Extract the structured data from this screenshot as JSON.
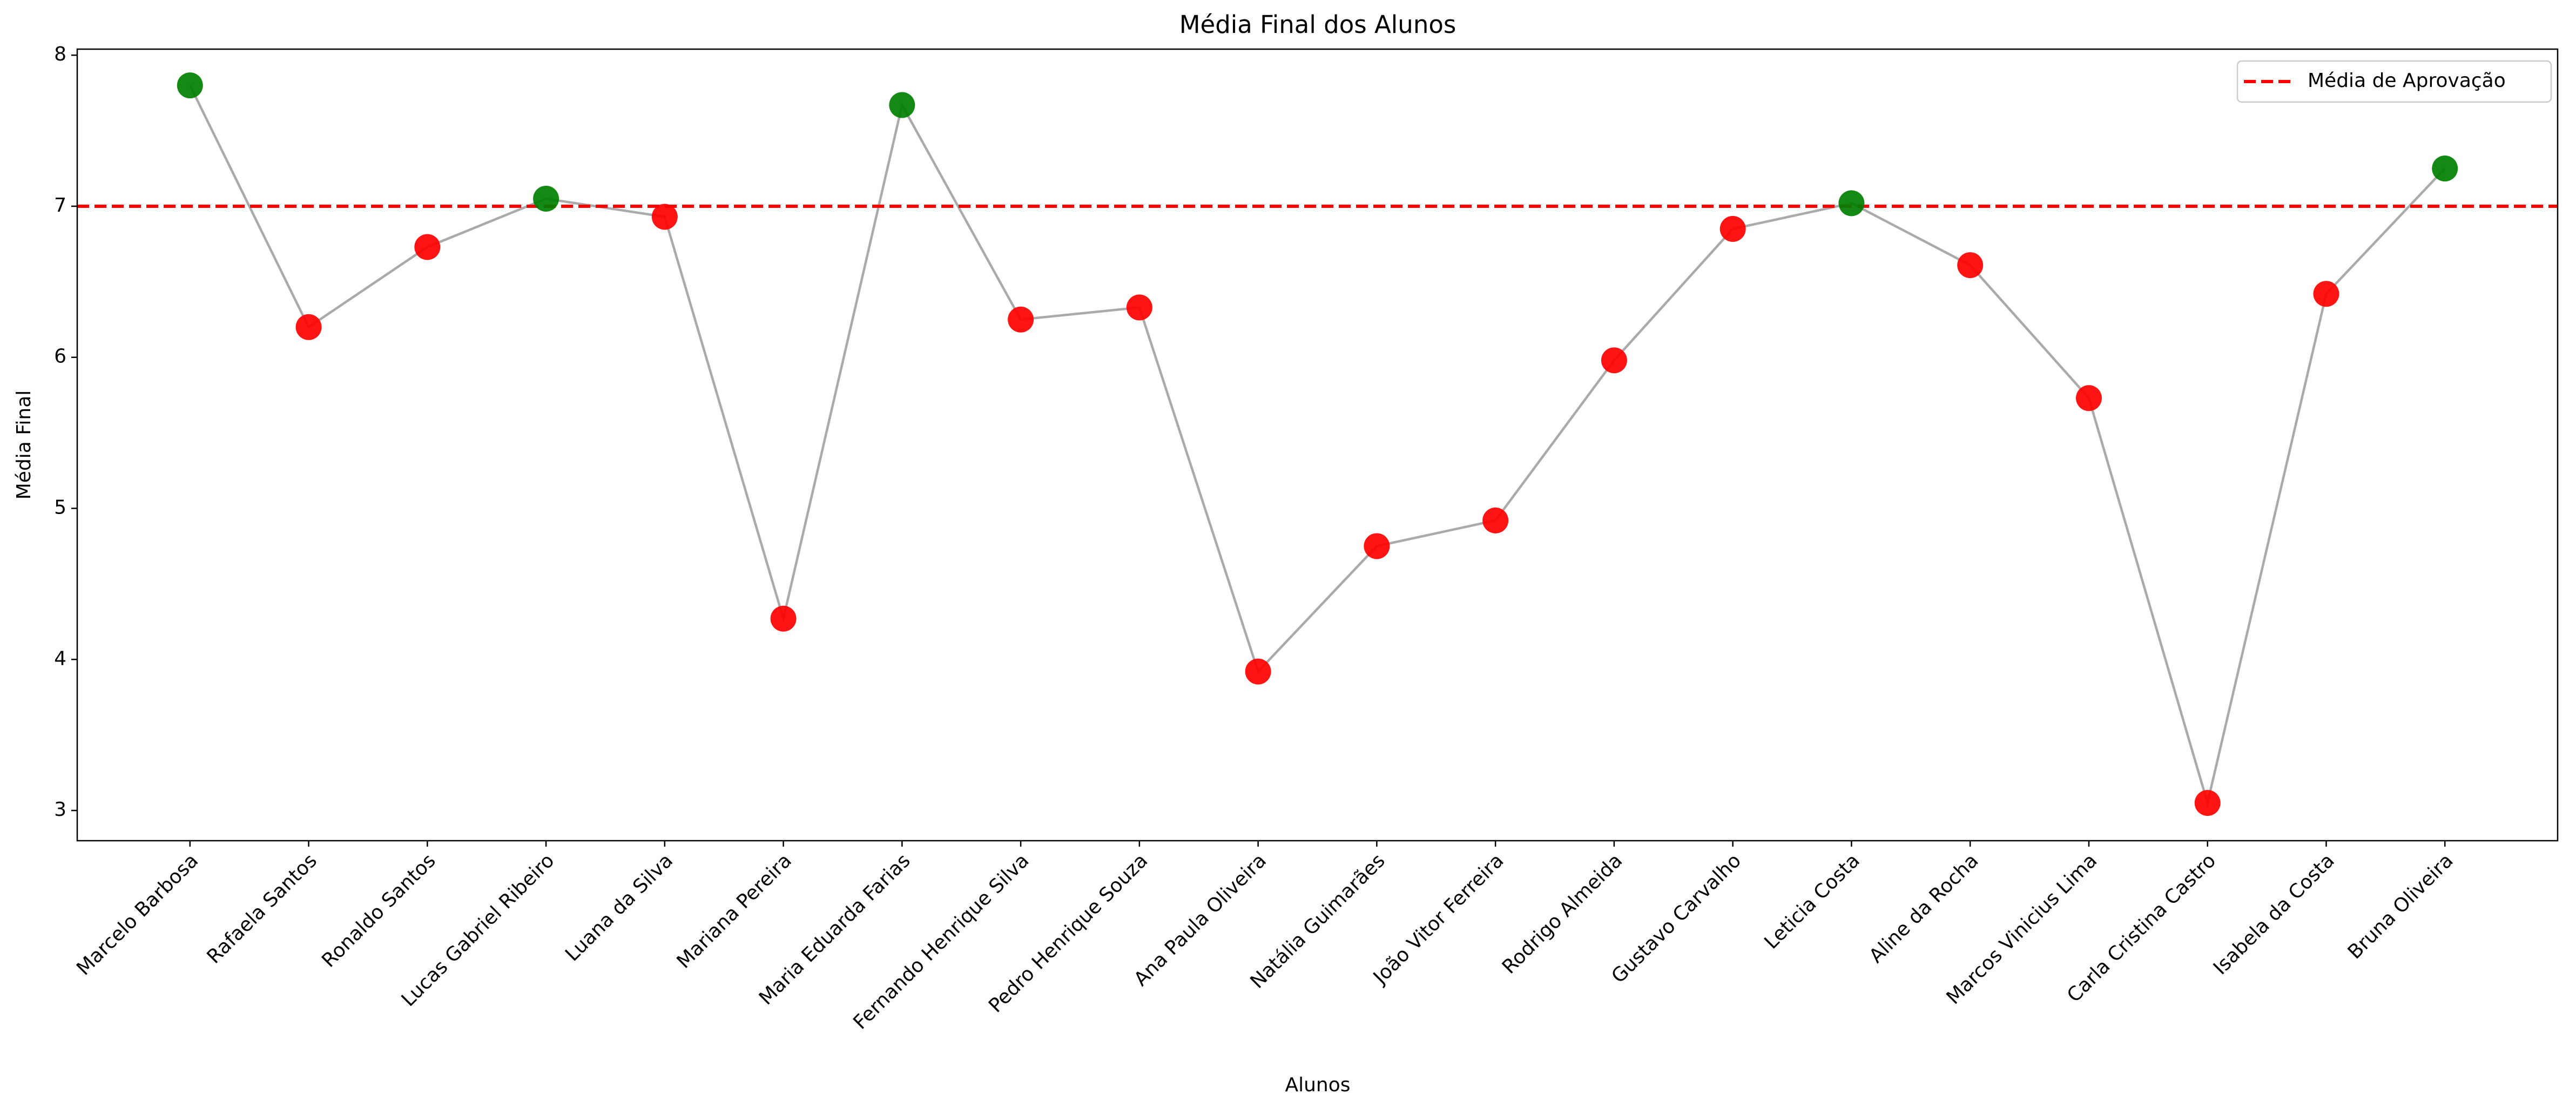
{
  "chart_data": {
    "type": "line",
    "title": "Média Final dos Alunos",
    "x_label": "Alunos",
    "y_label": "Média Final",
    "categories": [
      "Marcelo Barbosa",
      "Rafaela Santos",
      "Ronaldo Santos",
      "Lucas Gabriel Ribeiro",
      "Luana da Silva",
      "Mariana Pereira",
      "Maria Eduarda Farias",
      "Fernando Henrique Silva",
      "Pedro Henrique Souza",
      "Ana Paula Oliveira",
      "Natália Guimarães",
      "João Vitor Ferreira",
      "Rodrigo Almeida",
      "Gustavo Carvalho",
      "Leticia Costa",
      "Aline da Rocha",
      "Marcos Vinicius Lima",
      "Carla Cristina Castro",
      "Isabela da Costa",
      "Bruna Oliveira"
    ],
    "values": [
      7.8,
      6.2,
      6.73,
      7.05,
      6.93,
      4.27,
      7.67,
      6.25,
      6.33,
      3.92,
      4.75,
      4.92,
      5.98,
      6.85,
      7.02,
      6.61,
      5.73,
      3.05,
      6.42,
      7.25
    ],
    "line_color": "#aaaaaa",
    "pass_color": "#008000",
    "fail_color": "#ff0000",
    "reference_line": {
      "value": 7,
      "label": "Média de Aprovação",
      "color": "#ff0000"
    },
    "legend": "upper right",
    "ylim": [
      2.8,
      8.04
    ],
    "yticks": [
      3,
      4,
      5,
      6,
      7,
      8
    ],
    "grid": false
  }
}
